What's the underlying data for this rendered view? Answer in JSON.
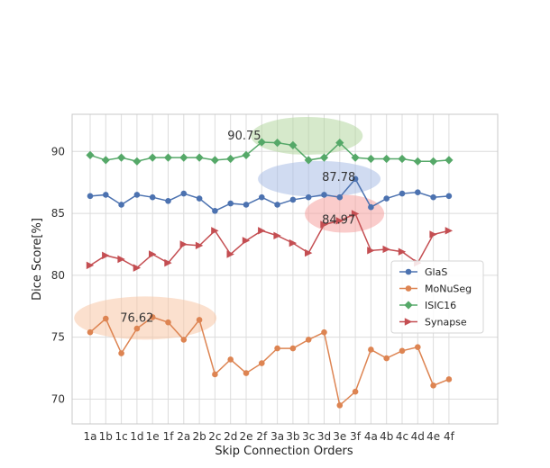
{
  "chart_data": {
    "type": "line",
    "xlabel": "Skip Connection Orders",
    "ylabel": "Dice Score[%]",
    "ylim": [
      68,
      93
    ],
    "yticks": [
      70,
      75,
      80,
      85,
      90
    ],
    "grid": true,
    "legend_position": "center-right",
    "categories": [
      "1a",
      "1b",
      "1c",
      "1d",
      "1e",
      "1f",
      "2a",
      "2b",
      "2c",
      "2d",
      "2e",
      "2f",
      "3a",
      "3b",
      "3c",
      "3d",
      "3e",
      "3f",
      "4a",
      "4b",
      "4c",
      "4d",
      "4e",
      "4f"
    ],
    "series": [
      {
        "name": "GlaS",
        "color": "#4c72b0",
        "marker": "circle",
        "values": [
          86.4,
          86.5,
          85.7,
          86.5,
          86.3,
          86.0,
          86.6,
          86.2,
          85.2,
          85.8,
          85.7,
          86.3,
          85.7,
          86.1,
          86.3,
          86.5,
          86.3,
          87.78,
          85.5,
          86.2,
          86.6,
          86.7,
          86.3,
          86.4
        ]
      },
      {
        "name": "MoNuSeg",
        "color": "#dd8452",
        "marker": "circle",
        "values": [
          75.4,
          76.5,
          73.7,
          75.7,
          76.62,
          76.2,
          74.8,
          76.4,
          72.0,
          73.2,
          72.1,
          72.9,
          74.1,
          74.1,
          74.8,
          75.4,
          69.5,
          70.6,
          74.0,
          73.3,
          73.9,
          74.2,
          71.1,
          71.6
        ]
      },
      {
        "name": "ISIC16",
        "color": "#55a868",
        "marker": "diamond",
        "values": [
          89.7,
          89.3,
          89.5,
          89.2,
          89.5,
          89.5,
          89.5,
          89.5,
          89.3,
          89.4,
          89.7,
          90.75,
          90.7,
          90.5,
          89.3,
          89.5,
          90.7,
          89.5,
          89.4,
          89.4,
          89.4,
          89.2,
          89.2,
          89.3
        ]
      },
      {
        "name": "Synapse",
        "color": "#c44e52",
        "marker": "triangle-right",
        "values": [
          80.8,
          81.6,
          81.3,
          80.6,
          81.7,
          81.0,
          82.5,
          82.4,
          83.6,
          81.7,
          82.8,
          83.6,
          83.2,
          82.6,
          81.8,
          84.1,
          84.4,
          84.97,
          82.0,
          82.1,
          81.9,
          81.0,
          83.3,
          83.6
        ]
      }
    ],
    "annotations": [
      {
        "text": "90.75",
        "series": "ISIC16",
        "category": "2f",
        "color": "#55a868"
      },
      {
        "text": "87.78",
        "series": "GlaS",
        "category": "3f",
        "color": "#4c72b0"
      },
      {
        "text": "84.97",
        "series": "Synapse",
        "category": "3f",
        "color": "#c44e52"
      },
      {
        "text": "76.62",
        "series": "MoNuSeg",
        "category": "1e",
        "color": "#dd8452"
      }
    ]
  }
}
